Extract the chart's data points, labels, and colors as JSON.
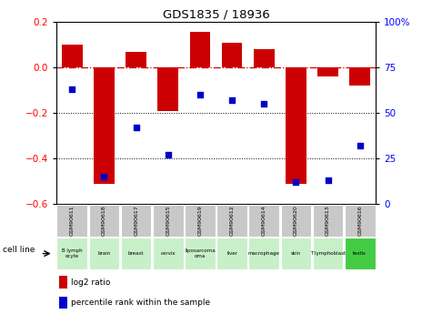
{
  "title": "GDS1835 / 18936",
  "samples": [
    "GSM90611",
    "GSM90618",
    "GSM90617",
    "GSM90615",
    "GSM90619",
    "GSM90612",
    "GSM90614",
    "GSM90620",
    "GSM90613",
    "GSM90616"
  ],
  "cell_lines": [
    "B lymph\nocyte",
    "brain",
    "breast",
    "cervix",
    "liposarcoma\n(liposarcoma)",
    "liver",
    "macrophage",
    "skin",
    "T lymphoblast",
    "testis"
  ],
  "cell_lines_display": [
    "B lymph\nocyte",
    "brain",
    "breast",
    "cervix",
    "liposarcoma\noma",
    "liver",
    "macrophage",
    "skin",
    "T lymphoblast",
    "testis"
  ],
  "cell_line_colors": [
    "#c8f0c8",
    "#c8f0c8",
    "#c8f0c8",
    "#c8f0c8",
    "#c8f0c8",
    "#c8f0c8",
    "#c8f0c8",
    "#c8f0c8",
    "#c8f0c8",
    "#44cc44"
  ],
  "log2_ratio": [
    0.1,
    -0.51,
    0.07,
    -0.19,
    0.155,
    0.11,
    0.08,
    -0.51,
    -0.04,
    -0.08
  ],
  "percentile_rank": [
    63,
    15,
    42,
    27,
    60,
    57,
    55,
    12,
    13,
    32
  ],
  "bar_color": "#cc0000",
  "dot_color": "#0000cc",
  "left_ylim": [
    -0.6,
    0.2
  ],
  "right_ylim": [
    0,
    100
  ],
  "left_yticks": [
    -0.6,
    -0.4,
    -0.2,
    0.0,
    0.2
  ],
  "right_yticks": [
    0,
    25,
    50,
    75,
    100
  ],
  "hline_y": 0.0,
  "dotted_lines": [
    -0.2,
    -0.4
  ],
  "bar_width": 0.65
}
